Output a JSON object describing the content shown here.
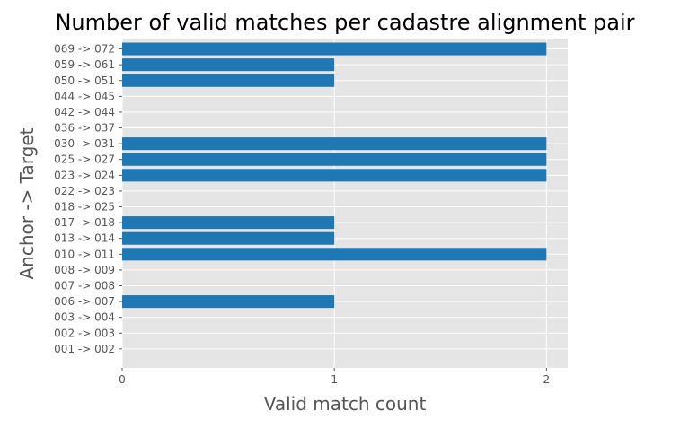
{
  "chart_data": {
    "type": "bar",
    "orientation": "horizontal",
    "title": "Number of valid matches per cadastre alignment pair",
    "xlabel": "Valid match count",
    "ylabel": "Anchor -> Target",
    "xlim": [
      0,
      2.1
    ],
    "xticks": [
      "0",
      "1",
      "2"
    ],
    "grid": true,
    "bar_color": "#1f77b4",
    "background_color": "#e5e5e5",
    "categories": [
      "001 -> 002",
      "002 -> 003",
      "003 -> 004",
      "006 -> 007",
      "007 -> 008",
      "008 -> 009",
      "010 -> 011",
      "013 -> 014",
      "017 -> 018",
      "018 -> 025",
      "022 -> 023",
      "023 -> 024",
      "025 -> 027",
      "030 -> 031",
      "036 -> 037",
      "042 -> 044",
      "044 -> 045",
      "050 -> 051",
      "059 -> 061",
      "069 -> 072"
    ],
    "values": [
      0,
      0,
      0,
      1,
      0,
      0,
      2,
      1,
      1,
      0,
      0,
      2,
      2,
      2,
      0,
      0,
      0,
      1,
      1,
      2
    ]
  }
}
